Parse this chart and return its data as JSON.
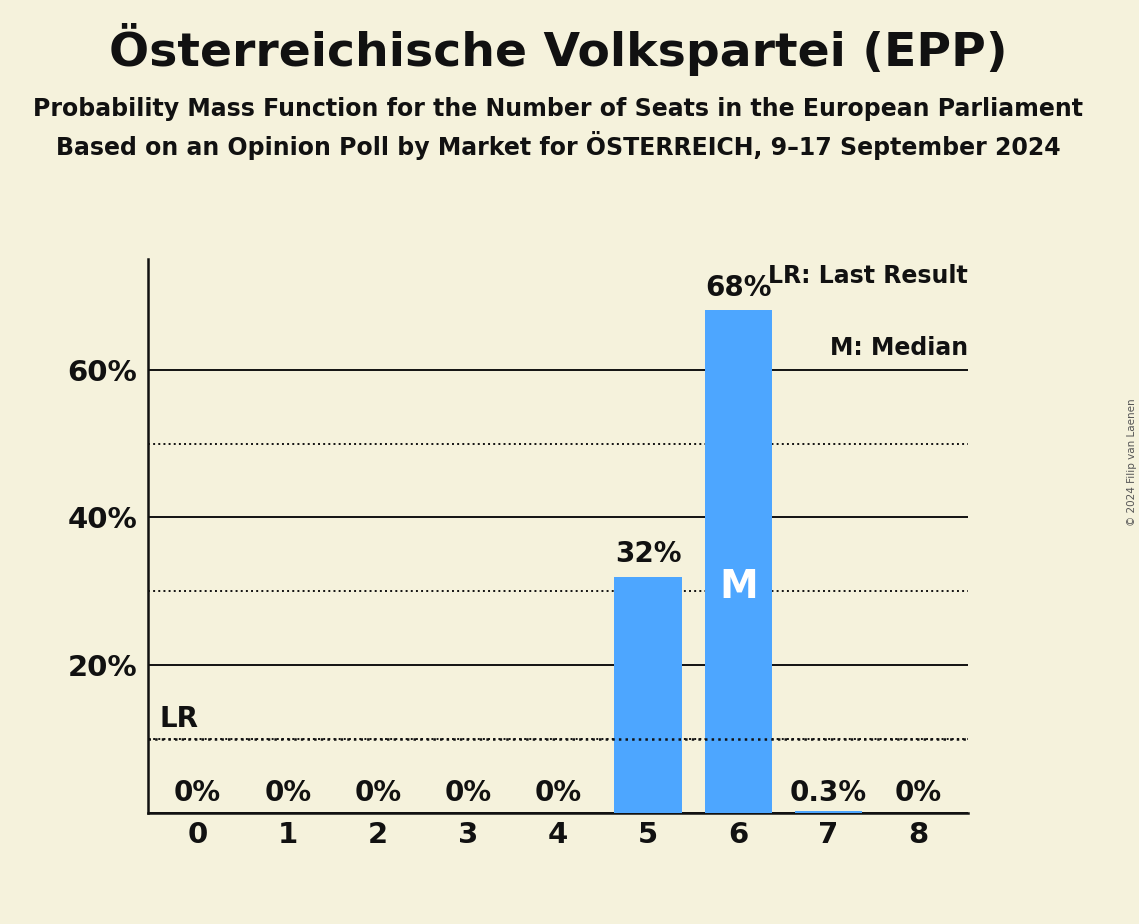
{
  "title": "Österreichische Volkspartei (EPP)",
  "subtitle1": "Probability Mass Function for the Number of Seats in the European Parliament",
  "subtitle2": "Based on an Opinion Poll by Market for ÖSTERREICH, 9–17 September 2024",
  "copyright": "© 2024 Filip van Laenen",
  "seats": [
    0,
    1,
    2,
    3,
    4,
    5,
    6,
    7,
    8
  ],
  "probabilities": [
    0.0,
    0.0,
    0.0,
    0.0,
    0.0,
    0.32,
    0.68,
    0.003,
    0.0
  ],
  "bar_labels": [
    "0%",
    "0%",
    "0%",
    "0%",
    "0%",
    "32%",
    "68%",
    "0.3%",
    "0%"
  ],
  "bar_color": "#4da6ff",
  "background_color": "#f5f2dc",
  "text_color": "#111111",
  "lr_value": 0.1,
  "lr_label": "LR",
  "median_seat": 6,
  "median_label": "M",
  "legend_lr": "LR: Last Result",
  "legend_m": "M: Median",
  "ylim_max": 0.75,
  "yticks": [
    0.2,
    0.4,
    0.6
  ],
  "ytick_labels": [
    "20%",
    "40%",
    "60%"
  ],
  "solid_yticks": [
    0.0,
    0.2,
    0.4,
    0.6
  ],
  "dotted_yticks": [
    0.1,
    0.3,
    0.5
  ],
  "title_fontsize": 34,
  "subtitle_fontsize": 17,
  "bar_label_fontsize": 20,
  "axis_tick_fontsize": 21,
  "legend_fontsize": 17,
  "median_fontsize": 28,
  "lr_fontsize": 20
}
